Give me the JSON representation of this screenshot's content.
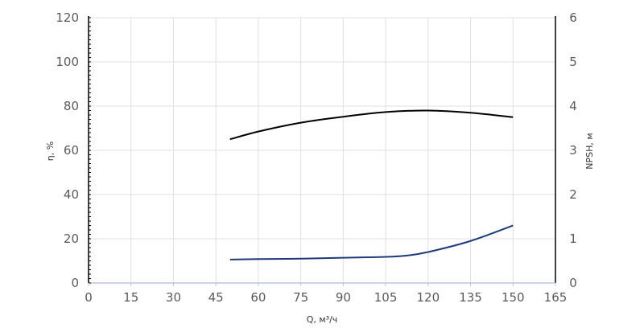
{
  "chart_data": {
    "type": "line",
    "title": "",
    "xlabel": "Q, м³/ч",
    "ylabel": "η, %",
    "y2label": "NPSH, м",
    "xlim": [
      0,
      165
    ],
    "ylim": [
      0,
      120
    ],
    "y2lim": [
      0,
      6
    ],
    "xticks": [
      "0",
      "15",
      "30",
      "45",
      "60",
      "75",
      "90",
      "105",
      "120",
      "135",
      "150",
      "165"
    ],
    "yticks": [
      "0",
      "20",
      "40",
      "60",
      "80",
      "100",
      "120"
    ],
    "y2ticks": [
      "0",
      "1",
      "2",
      "3",
      "4",
      "5",
      "6"
    ],
    "grid": true,
    "series": [
      {
        "axis": "left",
        "color": "#000000",
        "x": [
          50,
          60,
          75,
          90,
          105,
          120,
          135,
          150
        ],
        "y": [
          65,
          68.5,
          72.5,
          75.2,
          77.3,
          78,
          77,
          75
        ]
      },
      {
        "axis": "right",
        "color": "#1f3a7a",
        "x": [
          50,
          60,
          75,
          90,
          105,
          112.5,
          120,
          135,
          150
        ],
        "y": [
          0.53,
          0.54,
          0.55,
          0.57,
          0.59,
          0.62,
          0.7,
          0.95,
          1.3
        ]
      }
    ]
  }
}
